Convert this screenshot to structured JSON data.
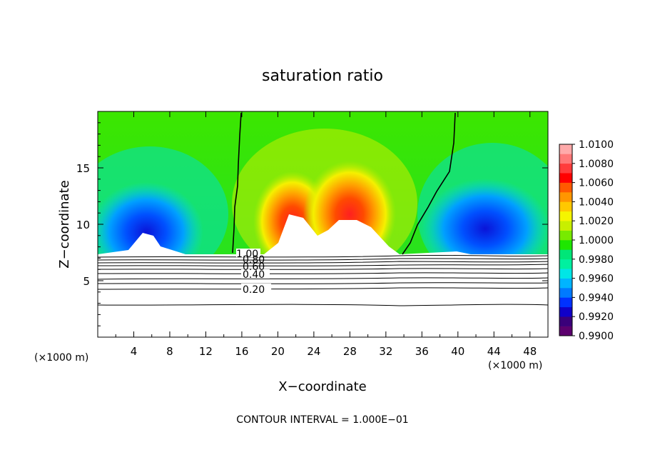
{
  "chart_data": {
    "type": "heatmap",
    "title": "saturation ratio",
    "xlabel": "X−coordinate",
    "ylabel": "Z−coordinate",
    "x_unit_left": "(×1000 m)",
    "x_unit_right": "(×1000 m)",
    "footer": "CONTOUR INTERVAL = 1.000E−01",
    "xlim": [
      0,
      50
    ],
    "ylim": [
      0,
      20
    ],
    "xticks": [
      "4",
      "8",
      "12",
      "16",
      "20",
      "24",
      "28",
      "32",
      "36",
      "40",
      "44",
      "48"
    ],
    "xtick_values": [
      4,
      8,
      12,
      16,
      20,
      24,
      28,
      32,
      36,
      40,
      44,
      48
    ],
    "yticks": [
      "5",
      "10",
      "15"
    ],
    "ytick_values": [
      5,
      10,
      15
    ],
    "colorbar": {
      "labels": [
        "1.0100",
        "1.0080",
        "1.0060",
        "1.0040",
        "1.0020",
        "1.0000",
        "0.9980",
        "0.9960",
        "0.9940",
        "0.9920",
        "0.9900"
      ],
      "colors": [
        "#5c006e",
        "#3a007a",
        "#1000c8",
        "#0032ff",
        "#007aff",
        "#00b4ff",
        "#00e6e6",
        "#00f0a0",
        "#00e678",
        "#1ee600",
        "#78ea00",
        "#c8ef00",
        "#f5f500",
        "#ffc800",
        "#ff9600",
        "#ff5a00",
        "#ff0000",
        "#ff3c3c",
        "#ff7878",
        "#ffaaaa"
      ]
    },
    "contour_labels": [
      "1.00",
      "0.80",
      "0.60",
      "0.40",
      "0.20"
    ],
    "contour_label_values": [
      1.0,
      0.8,
      0.6,
      0.4,
      0.2
    ]
  }
}
